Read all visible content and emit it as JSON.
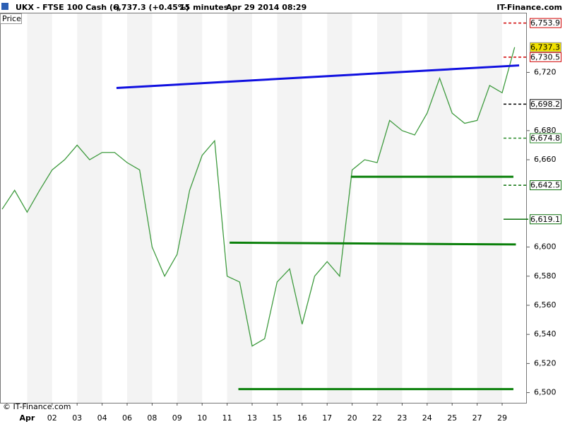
{
  "chart_data": {
    "type": "line",
    "title": "UKX - FTSE 100 Cash (-)",
    "last": "6,737.3 (+0.45%)",
    "interval": "15 minutes",
    "datetime": "Apr 29 2014 08:29",
    "brand": "IT-Finance.com",
    "copyright": "© IT-Finance.com",
    "categories": [
      null,
      null,
      "Apr",
      null,
      "02",
      null,
      "03",
      null,
      "04",
      null,
      "06",
      null,
      "08",
      null,
      "09",
      null,
      "10",
      null,
      "11",
      null,
      "13",
      null,
      "15",
      null,
      "16",
      null,
      "17",
      null,
      "20",
      null,
      "22",
      null,
      "23",
      null,
      "24",
      null,
      "25",
      null,
      "27",
      null,
      "29",
      null
    ],
    "series": [
      {
        "name": "Price",
        "color": "#3f9b3f",
        "values": [
          6626,
          6639,
          6624,
          6639,
          6653,
          6660,
          6670,
          6660,
          6665,
          6665,
          6658,
          6653,
          6600,
          6580,
          6595,
          6639,
          6663,
          6673,
          6580,
          6576,
          6532,
          6537,
          6576,
          6585,
          6547,
          6580,
          6590,
          6580,
          6653,
          6660,
          6658,
          6687,
          6680,
          6677,
          6692,
          6716,
          6692,
          6685,
          6687,
          6711,
          6706,
          6737.3
        ]
      }
    ],
    "ylim": [
      6493,
      6761
    ],
    "yticks": [
      {
        "value": 6500,
        "label": "6,500"
      },
      {
        "value": 6520,
        "label": "6,520"
      },
      {
        "value": 6540,
        "label": "6,540"
      },
      {
        "value": 6560,
        "label": "6,560"
      },
      {
        "value": 6580,
        "label": "6,580"
      },
      {
        "value": 6600,
        "label": "6,600"
      },
      {
        "value": 6660,
        "label": "6,660"
      },
      {
        "value": 6680,
        "label": "6,680"
      },
      {
        "value": 6720,
        "label": "6,720"
      }
    ],
    "trend_lines": [
      {
        "color": "#1010e0",
        "x": [
          9.15,
          41.36
        ],
        "y": [
          6709.3,
          6724.8
        ]
      },
      {
        "color": "#0a800a",
        "x": [
          27.9,
          40.9
        ],
        "y": [
          6648.3,
          6648.3
        ]
      },
      {
        "color": "#0a800a",
        "x": [
          18.2,
          41.1
        ],
        "y": [
          6603,
          6601.8
        ]
      },
      {
        "color": "#0a800a",
        "x": [
          18.9,
          40.9
        ],
        "y": [
          6502.4,
          6502.4
        ]
      }
    ],
    "levels": [
      {
        "value": 6753.9,
        "label": "6,753.9",
        "color": "#d00000",
        "style": "dashed"
      },
      {
        "value": 6737.3,
        "label": "6,737.3",
        "color": "#f0e000",
        "style": "current"
      },
      {
        "value": 6730.5,
        "label": "6,730.5",
        "color": "#d00000",
        "style": "dashed"
      },
      {
        "value": 6698.2,
        "label": "6,698.2",
        "color": "#000000",
        "style": "dashed"
      },
      {
        "value": 6674.8,
        "label": "6,674.8",
        "color": "#2a8a2a",
        "style": "dashed"
      },
      {
        "value": 6642.5,
        "label": "6,642.5",
        "color": "#0a700a",
        "style": "dashed"
      },
      {
        "value": 6619.1,
        "label": "6,619.1",
        "color": "#0a700a",
        "style": "solid"
      }
    ]
  }
}
